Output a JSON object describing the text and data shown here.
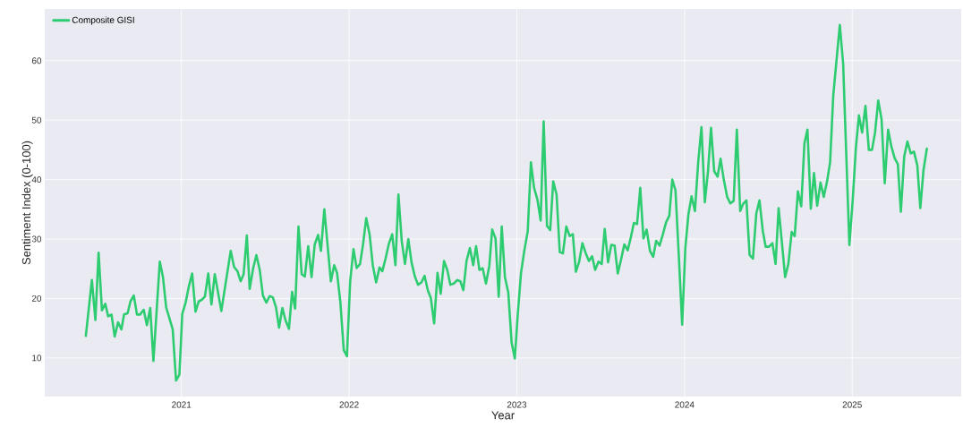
{
  "chart_data": {
    "type": "line",
    "xlabel": "Year",
    "ylabel": "Sentiment Index (0-100)",
    "xlim": [
      2020.185,
      2025.65
    ],
    "ylim": [
      3.5,
      68.7
    ],
    "xticks": [
      2021,
      2022,
      2023,
      2024,
      2025
    ],
    "yticks": [
      10,
      20,
      30,
      40,
      50,
      60
    ],
    "grid": true,
    "legend": "top left",
    "line_style": "solid",
    "series": [
      {
        "name": "Composite GISI",
        "color": "#2ecc71",
        "x": [
          2020.43,
          2020.466,
          2020.487,
          2020.506,
          2020.526,
          2020.546,
          2020.563,
          2020.583,
          2020.602,
          2020.622,
          2020.642,
          2020.658,
          2020.679,
          2020.696,
          2020.716,
          2020.735,
          2020.753,
          2020.775,
          2020.794,
          2020.814,
          2020.833,
          2020.871,
          2020.89,
          2020.909,
          2020.948,
          2020.968,
          2020.988,
          2021.005,
          2021.025,
          2021.044,
          2021.064,
          2021.084,
          2021.103,
          2021.122,
          2021.14,
          2021.16,
          2021.179,
          2021.199,
          2021.238,
          2021.275,
          2021.294,
          2021.314,
          2021.334,
          2021.353,
          2021.371,
          2021.39,
          2021.407,
          2021.428,
          2021.447,
          2021.467,
          2021.486,
          2021.506,
          2021.526,
          2021.545,
          2021.564,
          2021.582,
          2021.602,
          2021.621,
          2021.641,
          2021.66,
          2021.678,
          2021.698,
          2021.717,
          2021.736,
          2021.756,
          2021.776,
          2021.795,
          2021.815,
          2021.832,
          2021.852,
          2021.872,
          2021.891,
          2021.911,
          2021.928,
          2021.948,
          2021.968,
          2021.987,
          2022.006,
          2022.026,
          2022.045,
          2022.065,
          2022.083,
          2022.102,
          2022.122,
          2022.141,
          2022.161,
          2022.181,
          2022.198,
          2022.218,
          2022.237,
          2022.257,
          2022.276,
          2022.294,
          2022.314,
          2022.333,
          2022.353,
          2022.372,
          2022.391,
          2022.411,
          2022.431,
          2022.45,
          2022.47,
          2022.487,
          2022.507,
          2022.527,
          2022.546,
          2022.566,
          2022.585,
          2022.604,
          2022.624,
          2022.644,
          2022.663,
          2022.681,
          2022.7,
          2022.72,
          2022.74,
          2022.757,
          2022.777,
          2022.796,
          2022.816,
          2022.836,
          2022.853,
          2022.873,
          2022.892,
          2022.91,
          2022.929,
          2022.949,
          2022.969,
          2022.988,
          2023.006,
          2023.025,
          2023.045,
          2023.065,
          2023.084,
          2023.103,
          2023.123,
          2023.142,
          2023.16,
          2023.18,
          2023.199,
          2023.217,
          2023.237,
          2023.256,
          2023.275,
          2023.295,
          2023.315,
          2023.334,
          2023.352,
          2023.371,
          2023.391,
          2023.411,
          2023.43,
          2023.449,
          2023.467,
          2023.487,
          2023.506,
          2023.524,
          2023.544,
          2023.563,
          2023.583,
          2023.602,
          2023.622,
          2023.641,
          2023.661,
          2023.68,
          2023.698,
          2023.717,
          2023.736,
          2023.755,
          2023.774,
          2023.794,
          2023.813,
          2023.831,
          2023.851,
          2023.87,
          2023.89,
          2023.909,
          2023.927,
          2023.946,
          2023.966,
          2023.986,
          2024.005,
          2024.023,
          2024.042,
          2024.062,
          2024.082,
          2024.101,
          2024.121,
          2024.14,
          2024.158,
          2024.177,
          2024.197,
          2024.215,
          2024.234,
          2024.254,
          2024.273,
          2024.293,
          2024.312,
          2024.332,
          2024.349,
          2024.369,
          2024.388,
          2024.408,
          2024.428,
          2024.447,
          2024.467,
          2024.484,
          2024.504,
          2024.524,
          2024.543,
          2024.561,
          2024.58,
          2024.6,
          2024.619,
          2024.639,
          2024.657,
          2024.676,
          2024.696,
          2024.715,
          2024.733,
          2024.753,
          2024.772,
          2024.791,
          2024.811,
          2024.83,
          2024.85,
          2024.868,
          2024.887,
          2024.926,
          2024.946,
          2024.964,
          2024.983,
          2025.003,
          2025.022,
          2025.04,
          2025.059,
          2025.079,
          2025.099,
          2025.118,
          2025.136,
          2025.155,
          2025.175,
          2025.194,
          2025.214,
          2025.233,
          2025.253,
          2025.272,
          2025.29,
          2025.31,
          2025.329,
          2025.349,
          2025.368,
          2025.388,
          2025.406,
          2025.425,
          2025.445
        ],
        "values": [
          13.7,
          23.1,
          16.4,
          27.7,
          18.0,
          19.1,
          17.0,
          17.3,
          13.6,
          16.0,
          14.8,
          17.3,
          17.5,
          19.5,
          20.5,
          17.3,
          17.3,
          18.1,
          15.5,
          18.4,
          9.5,
          26.2,
          23.6,
          18.5,
          14.8,
          6.2,
          7.2,
          17.4,
          19.3,
          22.0,
          24.2,
          17.8,
          19.5,
          19.8,
          20.3,
          24.2,
          19.0,
          24.1,
          17.9,
          24.6,
          28.0,
          25.3,
          24.6,
          22.9,
          24.1,
          30.6,
          21.6,
          25.1,
          27.3,
          24.8,
          20.5,
          19.3,
          20.4,
          20.2,
          18.5,
          15.1,
          18.4,
          16.3,
          14.9,
          21.1,
          18.3,
          32.1,
          24.1,
          23.7,
          28.8,
          23.6,
          29.1,
          30.7,
          28.0,
          35.0,
          28.8,
          22.9,
          25.6,
          24.3,
          19.3,
          11.3,
          10.3,
          22.8,
          28.3,
          25.1,
          25.8,
          29.1,
          33.5,
          30.8,
          25.6,
          22.7,
          25.2,
          24.6,
          26.8,
          29.2,
          30.8,
          25.6,
          37.5,
          29.6,
          25.8,
          30.0,
          26.1,
          23.8,
          22.3,
          22.7,
          23.8,
          21.3,
          20.1,
          15.8,
          24.3,
          20.8,
          26.3,
          24.8,
          22.3,
          22.5,
          23.1,
          22.9,
          21.4,
          26.3,
          28.5,
          25.6,
          28.8,
          24.8,
          25.1,
          22.5,
          25.5,
          31.6,
          30.1,
          20.3,
          32.1,
          23.6,
          21.0,
          12.6,
          9.9,
          17.5,
          24.3,
          28.1,
          31.3,
          42.9,
          38.6,
          36.6,
          33.1,
          49.8,
          32.2,
          31.5,
          39.7,
          37.5,
          27.8,
          27.6,
          32.1,
          30.5,
          30.8,
          24.5,
          26.1,
          29.3,
          27.6,
          26.3,
          27.1,
          24.8,
          26.2,
          25.8,
          31.7,
          26.1,
          29.0,
          28.9,
          24.2,
          26.6,
          29.1,
          28.1,
          30.3,
          32.7,
          32.5,
          38.6,
          30.1,
          31.6,
          28.0,
          27.0,
          29.7,
          28.9,
          30.7,
          32.8,
          33.9,
          40.0,
          38.2,
          27.1,
          15.6,
          28.6,
          34.1,
          37.2,
          34.7,
          43.1,
          48.8,
          36.2,
          41.4,
          48.7,
          41.4,
          40.5,
          43.5,
          40.0,
          37.1,
          36.0,
          36.4,
          48.4,
          34.7,
          35.9,
          36.5,
          27.3,
          26.7,
          34.3,
          36.5,
          31.3,
          28.7,
          28.7,
          29.3,
          25.8,
          35.2,
          29.6,
          23.6,
          25.8,
          31.2,
          30.5,
          38.0,
          35.5,
          46.1,
          48.4,
          35.1,
          41.1,
          35.6,
          39.5,
          37.1,
          39.7,
          42.9,
          54.2,
          66.0,
          59.4,
          44.6,
          29.0,
          36.6,
          45.4,
          50.8,
          47.9,
          52.4,
          45.0,
          45.0,
          47.9,
          53.3,
          50.1,
          39.4,
          48.4,
          45.6,
          43.6,
          42.6,
          34.6,
          43.9,
          46.4,
          44.4,
          44.7,
          42.4,
          35.2,
          41.6,
          45.2
        ]
      }
    ]
  }
}
